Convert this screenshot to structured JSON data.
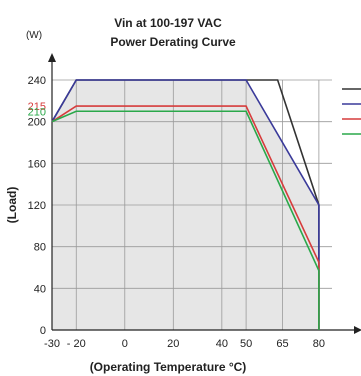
{
  "chart_data": {
    "type": "line",
    "title_line1": "Vin at 100-197 VAC",
    "title_line2": "Power Derating Curve",
    "ylabel": "(Load)",
    "yunit": "(W)",
    "xlabel": "(Operating Temperature °C)",
    "xlim": [
      -30,
      92
    ],
    "ylim": [
      0,
      240
    ],
    "x_ticks": [
      -30,
      -20,
      0,
      20,
      40,
      50,
      65,
      80
    ],
    "x_tick_labels": [
      "-30",
      "- 20",
      "0",
      "20",
      "40",
      "50",
      "65",
      "80"
    ],
    "y_ticks": [
      0,
      40,
      80,
      120,
      160,
      200,
      240
    ],
    "y_tick_labels": [
      "0",
      "40",
      "80",
      "120",
      "160",
      "200",
      "240"
    ],
    "grid": true,
    "shaded_region": [
      [
        -30,
        200
      ],
      [
        -20,
        240
      ],
      [
        50,
        240
      ],
      [
        80,
        120
      ],
      [
        80,
        0
      ],
      [
        -30,
        0
      ]
    ],
    "highlight_labels": [
      {
        "text": "215",
        "y": 215,
        "color": "#d63c3c"
      },
      {
        "text": "210",
        "y": 210,
        "color": "#2aa84a"
      }
    ],
    "series": [
      {
        "color": "#333333",
        "x": [
          -30,
          -20,
          63,
          80,
          80
        ],
        "y": [
          200,
          240,
          240,
          120,
          0
        ]
      },
      {
        "color": "#3a3a9a",
        "x": [
          -30,
          -20,
          50,
          80,
          80
        ],
        "y": [
          200,
          240,
          240,
          120,
          0
        ]
      },
      {
        "color": "#d63c3c",
        "x": [
          -30,
          -20,
          50,
          80,
          80
        ],
        "y": [
          200,
          215,
          215,
          65,
          0
        ]
      },
      {
        "color": "#2aa84a",
        "x": [
          -30,
          -20,
          50,
          80,
          80
        ],
        "y": [
          200,
          210,
          210,
          57,
          0
        ]
      }
    ],
    "legend": {
      "position": "right",
      "colors": [
        "#333333",
        "#3a3a9a",
        "#d63c3c",
        "#2aa84a"
      ]
    }
  }
}
